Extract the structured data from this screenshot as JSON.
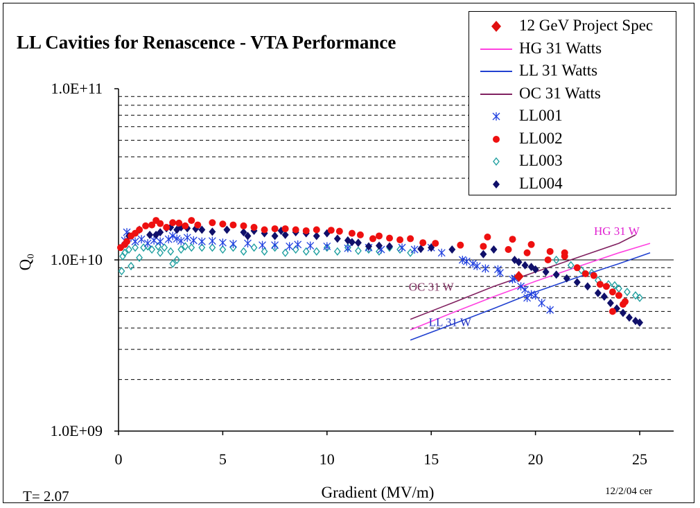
{
  "chart_data": {
    "type": "scatter",
    "title": "LL Cavities for Renascence - VTA Performance",
    "xlabel": "Gradient (MV/m)",
    "ylabel": "Q₀",
    "xlim": [
      0,
      25
    ],
    "ylim": [
      1000000000,
      100000000000
    ],
    "yscale": "log",
    "x_ticks": [
      0,
      5,
      10,
      15,
      20,
      25
    ],
    "y_tick_labels": [
      "1.0E+11",
      "1.0E+10",
      "1.0E+09"
    ],
    "grid": "dashed horizontal minor lines",
    "legend_position": "top-right",
    "footer_left": "T= 2.07",
    "footer_right": "12/2/04  cer",
    "annotations": [
      {
        "text": "HG 31 W",
        "x": 23.9,
        "y": 14000000000,
        "color": "#e020d0"
      },
      {
        "text": "OC 31 W",
        "x": 15.0,
        "y": 6600000000,
        "color": "#803060"
      },
      {
        "text": "LL 31 W",
        "x": 15.9,
        "y": 4100000000,
        "color": "#2030c0"
      }
    ],
    "series": [
      {
        "name": "12 GeV Project Spec",
        "style": "diamond",
        "color": "#e01010",
        "points": [
          [
            19.2,
            8000000000
          ]
        ]
      },
      {
        "name": "HG 31 Watts",
        "style": "line",
        "color": "#ff40e0",
        "points": [
          [
            14.0,
            3900000000
          ],
          [
            16.0,
            4900000000
          ],
          [
            18.0,
            6100000000
          ],
          [
            20.0,
            7500000000
          ],
          [
            22.0,
            9100000000
          ],
          [
            24.0,
            11000000000
          ],
          [
            25.5,
            12500000000
          ]
        ]
      },
      {
        "name": "LL 31 Watts",
        "style": "line",
        "color": "#2040d0",
        "points": [
          [
            14.0,
            3400000000
          ],
          [
            16.0,
            4200000000
          ],
          [
            18.0,
            5200000000
          ],
          [
            20.0,
            6500000000
          ],
          [
            22.0,
            7900000000
          ],
          [
            24.0,
            9500000000
          ],
          [
            25.5,
            11000000000
          ]
        ]
      },
      {
        "name": "OC 31 Watts",
        "style": "line",
        "color": "#802060",
        "points": [
          [
            14.0,
            4500000000
          ],
          [
            16.0,
            5600000000
          ],
          [
            18.0,
            7000000000
          ],
          [
            20.0,
            8500000000
          ],
          [
            22.0,
            10300000000
          ],
          [
            24.0,
            12500000000
          ],
          [
            24.8,
            14000000000
          ]
        ]
      },
      {
        "name": "LL001",
        "style": "star",
        "color": "#2040e0",
        "points": [
          [
            0.3,
            13000000000
          ],
          [
            0.4,
            14500000000
          ],
          [
            0.6,
            13500000000
          ],
          [
            0.8,
            12800000000
          ],
          [
            1.1,
            13200000000
          ],
          [
            1.4,
            12500000000
          ],
          [
            1.7,
            13000000000
          ],
          [
            2.0,
            12800000000
          ],
          [
            2.4,
            13200000000
          ],
          [
            2.6,
            13800000000
          ],
          [
            2.8,
            13300000000
          ],
          [
            3.0,
            12900000000
          ],
          [
            3.3,
            13500000000
          ],
          [
            3.6,
            13000000000
          ],
          [
            4.0,
            12800000000
          ],
          [
            4.5,
            12900000000
          ],
          [
            5.0,
            12600000000
          ],
          [
            5.5,
            12400000000
          ],
          [
            6.2,
            12500000000
          ],
          [
            6.9,
            12200000000
          ],
          [
            7.5,
            12200000000
          ],
          [
            8.2,
            12000000000
          ],
          [
            8.6,
            12300000000
          ],
          [
            9.2,
            12100000000
          ],
          [
            10.0,
            12000000000
          ],
          [
            11.0,
            11700000000
          ],
          [
            12.0,
            11800000000
          ],
          [
            12.6,
            11500000000
          ],
          [
            13.6,
            11800000000
          ],
          [
            14.2,
            11500000000
          ],
          [
            15.0,
            11800000000
          ],
          [
            15.5,
            11000000000
          ],
          [
            16.5,
            10000000000
          ],
          [
            16.7,
            9800000000
          ],
          [
            17.0,
            9500000000
          ],
          [
            17.2,
            9200000000
          ],
          [
            17.6,
            8900000000
          ],
          [
            18.2,
            8800000000
          ],
          [
            18.3,
            8400000000
          ],
          [
            18.9,
            7700000000
          ],
          [
            19.0,
            7800000000
          ],
          [
            19.3,
            7000000000
          ],
          [
            19.5,
            6700000000
          ],
          [
            19.6,
            6000000000
          ],
          [
            19.8,
            6300000000
          ],
          [
            20.0,
            6200000000
          ],
          [
            20.3,
            5600000000
          ],
          [
            20.7,
            5100000000
          ]
        ]
      },
      {
        "name": "LL002",
        "style": "circle",
        "color": "#ee1010",
        "points": [
          [
            0.1,
            11800000000
          ],
          [
            0.3,
            12300000000
          ],
          [
            0.4,
            12800000000
          ],
          [
            0.6,
            13800000000
          ],
          [
            0.8,
            14300000000
          ],
          [
            1.0,
            15000000000
          ],
          [
            1.3,
            15800000000
          ],
          [
            1.6,
            16000000000
          ],
          [
            1.8,
            17000000000
          ],
          [
            2.0,
            16300000000
          ],
          [
            2.3,
            15500000000
          ],
          [
            2.6,
            16500000000
          ],
          [
            2.9,
            16400000000
          ],
          [
            3.2,
            15800000000
          ],
          [
            3.5,
            17000000000
          ],
          [
            3.8,
            16000000000
          ],
          [
            4.5,
            16500000000
          ],
          [
            5.0,
            16200000000
          ],
          [
            5.5,
            16000000000
          ],
          [
            6.0,
            15800000000
          ],
          [
            6.5,
            15500000000
          ],
          [
            7.0,
            15000000000
          ],
          [
            7.5,
            15200000000
          ],
          [
            8.0,
            15200000000
          ],
          [
            8.5,
            15000000000
          ],
          [
            9.0,
            14800000000
          ],
          [
            9.5,
            15000000000
          ],
          [
            10.2,
            14900000000
          ],
          [
            10.6,
            14700000000
          ],
          [
            11.2,
            14300000000
          ],
          [
            11.6,
            14000000000
          ],
          [
            12.2,
            13300000000
          ],
          [
            12.5,
            13800000000
          ],
          [
            13.0,
            13400000000
          ],
          [
            13.5,
            13100000000
          ],
          [
            14.0,
            13300000000
          ],
          [
            14.6,
            12600000000
          ],
          [
            15.2,
            12500000000
          ],
          [
            16.4,
            12200000000
          ],
          [
            17.5,
            12000000000
          ],
          [
            17.7,
            13600000000
          ],
          [
            18.7,
            11500000000
          ],
          [
            18.9,
            13200000000
          ],
          [
            19.6,
            11000000000
          ],
          [
            19.8,
            12300000000
          ],
          [
            20.6,
            10000000000
          ],
          [
            20.7,
            11200000000
          ],
          [
            21.4,
            10500000000
          ],
          [
            21.4,
            11000000000
          ],
          [
            22.0,
            9000000000
          ],
          [
            22.4,
            8300000000
          ],
          [
            22.8,
            8100000000
          ],
          [
            23.1,
            7200000000
          ],
          [
            23.4,
            7000000000
          ],
          [
            23.7,
            6500000000
          ],
          [
            24.0,
            6200000000
          ],
          [
            24.2,
            5500000000
          ],
          [
            23.7,
            5000000000
          ],
          [
            24.3,
            5700000000
          ]
        ]
      },
      {
        "name": "LL003",
        "style": "diamond-open",
        "color": "#20a0a0",
        "points": [
          [
            0.15,
            8600000000
          ],
          [
            0.2,
            10500000000
          ],
          [
            0.3,
            11000000000
          ],
          [
            0.5,
            11500000000
          ],
          [
            0.6,
            9200000000
          ],
          [
            0.8,
            11800000000
          ],
          [
            1.0,
            10300000000
          ],
          [
            1.2,
            11800000000
          ],
          [
            1.4,
            12000000000
          ],
          [
            1.6,
            11500000000
          ],
          [
            1.9,
            12000000000
          ],
          [
            2.0,
            11000000000
          ],
          [
            2.2,
            11800000000
          ],
          [
            2.5,
            11200000000
          ],
          [
            2.6,
            9500000000
          ],
          [
            2.8,
            10000000000
          ],
          [
            3.0,
            11500000000
          ],
          [
            3.2,
            12000000000
          ],
          [
            3.5,
            11800000000
          ],
          [
            4.0,
            11800000000
          ],
          [
            4.5,
            11800000000
          ],
          [
            5.0,
            11500000000
          ],
          [
            5.5,
            11800000000
          ],
          [
            6.0,
            11200000000
          ],
          [
            6.5,
            11800000000
          ],
          [
            7.0,
            11200000000
          ],
          [
            7.5,
            11800000000
          ],
          [
            8.0,
            11000000000
          ],
          [
            8.5,
            11500000000
          ],
          [
            9.0,
            11200000000
          ],
          [
            9.5,
            11200000000
          ],
          [
            10.0,
            11800000000
          ],
          [
            10.5,
            11200000000
          ],
          [
            11.0,
            11800000000
          ],
          [
            11.5,
            11300000000
          ],
          [
            12.0,
            11500000000
          ],
          [
            12.5,
            11200000000
          ],
          [
            13.0,
            11800000000
          ],
          [
            13.5,
            11500000000
          ],
          [
            14.0,
            11000000000
          ],
          [
            21.0,
            10000000000
          ],
          [
            21.7,
            9300000000
          ],
          [
            22.2,
            8700000000
          ],
          [
            22.7,
            8400000000
          ],
          [
            23.0,
            7600000000
          ],
          [
            23.5,
            7200000000
          ],
          [
            23.8,
            7100000000
          ],
          [
            24.0,
            6800000000
          ],
          [
            24.4,
            6500000000
          ],
          [
            24.8,
            6200000000
          ],
          [
            25.0,
            6000000000
          ]
        ]
      },
      {
        "name": "LL004",
        "style": "diamond",
        "color": "#10106a",
        "points": [
          [
            0.5,
            13800000000
          ],
          [
            1.0,
            15000000000
          ],
          [
            1.5,
            14000000000
          ],
          [
            1.8,
            14000000000
          ],
          [
            2.0,
            14500000000
          ],
          [
            2.3,
            15300000000
          ],
          [
            2.5,
            15500000000
          ],
          [
            2.8,
            15000000000
          ],
          [
            3.0,
            15500000000
          ],
          [
            3.3,
            15300000000
          ],
          [
            3.7,
            15200000000
          ],
          [
            4.0,
            15000000000
          ],
          [
            4.5,
            14600000000
          ],
          [
            5.2,
            15000000000
          ],
          [
            6.0,
            14500000000
          ],
          [
            6.2,
            13800000000
          ],
          [
            6.5,
            14800000000
          ],
          [
            7.0,
            14300000000
          ],
          [
            7.5,
            13800000000
          ],
          [
            7.8,
            14800000000
          ],
          [
            8.0,
            14000000000
          ],
          [
            8.5,
            14500000000
          ],
          [
            9.0,
            14300000000
          ],
          [
            9.5,
            13800000000
          ],
          [
            10.0,
            14300000000
          ],
          [
            10.5,
            13300000000
          ],
          [
            11.0,
            13000000000
          ],
          [
            11.2,
            12700000000
          ],
          [
            11.5,
            12600000000
          ],
          [
            12.0,
            12000000000
          ],
          [
            12.5,
            12100000000
          ],
          [
            13.0,
            12000000000
          ],
          [
            14.5,
            11600000000
          ],
          [
            15.0,
            11800000000
          ],
          [
            16.0,
            11500000000
          ],
          [
            17.5,
            10800000000
          ],
          [
            18.0,
            11500000000
          ],
          [
            19.0,
            10000000000
          ],
          [
            19.2,
            9700000000
          ],
          [
            19.5,
            9300000000
          ],
          [
            19.8,
            9100000000
          ],
          [
            20.0,
            8800000000
          ],
          [
            20.5,
            8500000000
          ],
          [
            21.0,
            8200000000
          ],
          [
            21.5,
            7800000000
          ],
          [
            22.0,
            7400000000
          ],
          [
            22.5,
            7000000000
          ],
          [
            23.0,
            6400000000
          ],
          [
            23.3,
            6100000000
          ],
          [
            23.6,
            5600000000
          ],
          [
            23.9,
            5200000000
          ],
          [
            24.2,
            4900000000
          ],
          [
            24.5,
            4600000000
          ],
          [
            24.8,
            4400000000
          ],
          [
            25.0,
            4300000000
          ]
        ]
      }
    ]
  }
}
